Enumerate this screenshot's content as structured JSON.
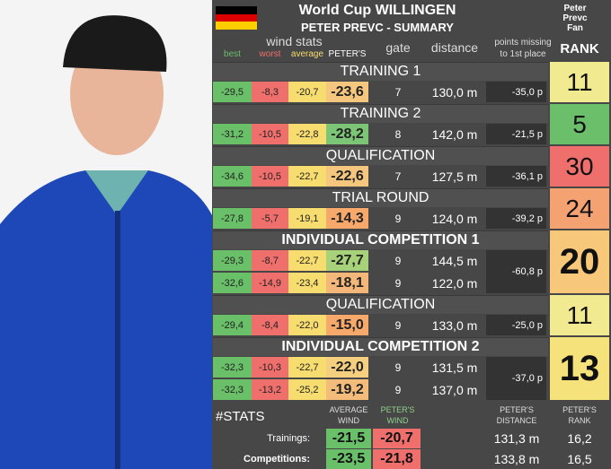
{
  "header": {
    "title": "World Cup WILLINGEN",
    "subtitle": "PETER PREVC - SUMMARY",
    "logo_text": [
      "Peter",
      "Prevc",
      "Fan"
    ]
  },
  "columns": {
    "wind_stats": "wind stats",
    "best": "best",
    "worst": "worst",
    "average": "average",
    "peters": "PETER'S",
    "gate": "gate",
    "distance": "distance",
    "points_missing": [
      "points missing",
      "to 1st place"
    ],
    "rank": "RANK"
  },
  "colors": {
    "best": "#6abf69",
    "worst": "#ef6f6c",
    "average": "#f7dc6f"
  },
  "sections": [
    {
      "title": "TRAINING 1",
      "bold": false,
      "rank": "11",
      "rank_color": "#f2ea90",
      "points_missing": "-35,0 p",
      "jumps": [
        {
          "best": "-29,5",
          "worst": "-8,3",
          "average": "-20,7",
          "peters": "-23,6",
          "peters_color": "#f5c77e",
          "gate": "7",
          "distance": "130,0 m"
        }
      ]
    },
    {
      "title": "TRAINING 2",
      "bold": false,
      "rank": "5",
      "rank_color": "#6cbf6a",
      "points_missing": "-21,5 p",
      "jumps": [
        {
          "best": "-31,2",
          "worst": "-10,5",
          "average": "-22,8",
          "peters": "-28,2",
          "peters_color": "#7cc576",
          "gate": "8",
          "distance": "142,0 m"
        }
      ]
    },
    {
      "title": "QUALIFICATION",
      "bold": false,
      "rank": "30",
      "rank_color": "#ef6f6c",
      "points_missing": "-36,1 p",
      "jumps": [
        {
          "best": "-34,6",
          "worst": "-10,5",
          "average": "-22,7",
          "peters": "-22,6",
          "peters_color": "#f5c77e",
          "gate": "7",
          "distance": "127,5 m"
        }
      ]
    },
    {
      "title": "TRIAL ROUND",
      "bold": false,
      "rank": "24",
      "rank_color": "#f5a272",
      "points_missing": "-39,2 p",
      "jumps": [
        {
          "best": "-27,8",
          "worst": "-5,7",
          "average": "-19,1",
          "peters": "-14,3",
          "peters_color": "#f6a96b",
          "gate": "9",
          "distance": "124,0 m"
        }
      ]
    },
    {
      "title": "INDIVIDUAL COMPETITION 1",
      "bold": true,
      "rank": "20",
      "rank_color": "#f7c879",
      "points_missing": "-60,8 p",
      "jumps": [
        {
          "best": "-29,3",
          "worst": "-8,7",
          "average": "-22,7",
          "peters": "-27,7",
          "peters_color": "#a8d27a",
          "gate": "9",
          "distance": "144,5 m"
        },
        {
          "best": "-32,6",
          "worst": "-14,9",
          "average": "-23,4",
          "peters": "-18,1",
          "peters_color": "#f3b879",
          "gate": "9",
          "distance": "122,0 m"
        }
      ]
    },
    {
      "title": "QUALIFICATION",
      "bold": false,
      "rank": "11",
      "rank_color": "#f2ea90",
      "points_missing": "-25,0 p",
      "jumps": [
        {
          "best": "-29,4",
          "worst": "-8,4",
          "average": "-22,0",
          "peters": "-15,0",
          "peters_color": "#f6a96b",
          "gate": "9",
          "distance": "133,0 m"
        }
      ]
    },
    {
      "title": "INDIVIDUAL COMPETITION 2",
      "bold": true,
      "rank": "13",
      "rank_color": "#f5e27a",
      "points_missing": "-37,0 p",
      "jumps": [
        {
          "best": "-32,3",
          "worst": "-10,3",
          "average": "-22,7",
          "peters": "-22,0",
          "peters_color": "#f5cf80",
          "gate": "9",
          "distance": "131,5 m"
        },
        {
          "best": "-32,3",
          "worst": "-13,2",
          "average": "-25,2",
          "peters": "-19,2",
          "peters_color": "#f4bc7a",
          "gate": "9",
          "distance": "137,0 m"
        }
      ]
    }
  ],
  "stats": {
    "title": "#STATS",
    "average_wind": [
      "AVERAGE",
      "WIND"
    ],
    "peters_wind": [
      "PETER'S",
      "WIND"
    ],
    "peters_distance": [
      "PETER'S",
      "DISTANCE"
    ],
    "peters_rank": [
      "PETER'S",
      "RANK"
    ],
    "rows": [
      {
        "label": "Trainings:",
        "average_wind": "-21,5",
        "peters_wind": "-20,7",
        "distance": "131,3 m",
        "rank": "16,2"
      },
      {
        "label": "Competitions:",
        "average_wind": "-23,5",
        "peters_wind": "-21,8",
        "distance": "133,8 m",
        "rank": "16,5"
      }
    ]
  }
}
